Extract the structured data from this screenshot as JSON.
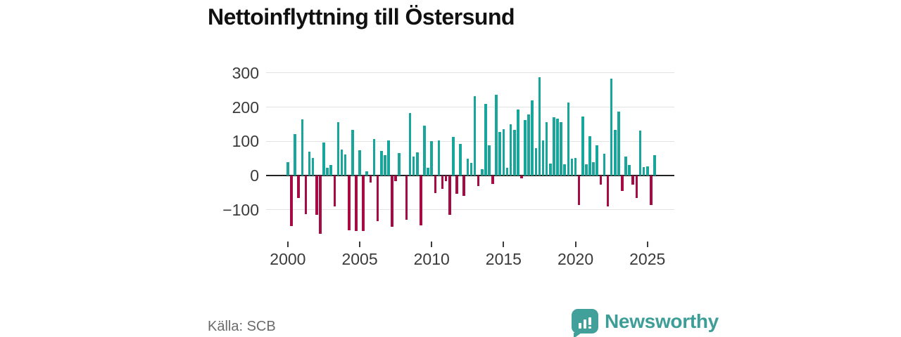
{
  "title": "Nettoinflyttning till Östersund",
  "source": {
    "label": "Källa: SCB"
  },
  "branding": {
    "name": "Newsworthy",
    "logo_icon": "bar-chart-speech-bubble-icon",
    "brand_color": "#3d9e97"
  },
  "colors": {
    "positive": "#18a69b",
    "negative": "#a60b44",
    "axis": "#222222",
    "grid": "#e2e2e2",
    "tick_text": "#3b3b3b",
    "source_text": "#6b6b6b"
  },
  "chart_data": {
    "type": "bar",
    "title": "Nettoinflyttning till Östersund",
    "xlabel": "",
    "ylabel": "",
    "grid": "horizontal-only",
    "legend": "none",
    "y_ticks": [
      300,
      200,
      100,
      0,
      -100
    ],
    "y_tick_labels": [
      "300",
      "200",
      "100",
      "0",
      "−100"
    ],
    "ylim": [
      -185,
      310
    ],
    "x_tick_years": [
      2000,
      2005,
      2010,
      2015,
      2020,
      2025
    ],
    "x_tick_labels": [
      "2000",
      "2005",
      "2010",
      "2015",
      "2020",
      "2025"
    ],
    "frequency": "quarterly",
    "start_quarter": "2000Q1",
    "end_quarter": "2025Q3",
    "values_by_year": [
      {
        "year": 2000,
        "quarters": [
          40,
          -148,
          121,
          -65
        ]
      },
      {
        "year": 2001,
        "quarters": [
          165,
          -112,
          70,
          52
        ]
      },
      {
        "year": 2002,
        "quarters": [
          -114,
          -170,
          97,
          22
        ]
      },
      {
        "year": 2003,
        "quarters": [
          30,
          -90,
          157,
          75
        ]
      },
      {
        "year": 2004,
        "quarters": [
          62,
          -160,
          133,
          -163
        ]
      },
      {
        "year": 2005,
        "quarters": [
          74,
          -162,
          12,
          -20
        ]
      },
      {
        "year": 2006,
        "quarters": [
          107,
          -134,
          72,
          59
        ]
      },
      {
        "year": 2007,
        "quarters": [
          103,
          -150,
          -17,
          65
        ]
      },
      {
        "year": 2008,
        "quarters": [
          0,
          -130,
          183,
          56
        ]
      },
      {
        "year": 2009,
        "quarters": [
          67,
          -145,
          146,
          22
        ]
      },
      {
        "year": 2010,
        "quarters": [
          100,
          -52,
          102,
          -40
        ]
      },
      {
        "year": 2011,
        "quarters": [
          -17,
          -115,
          112,
          -54
        ]
      },
      {
        "year": 2012,
        "quarters": [
          93,
          -60,
          50,
          36
        ]
      },
      {
        "year": 2013,
        "quarters": [
          232,
          -30,
          19,
          210
        ]
      },
      {
        "year": 2014,
        "quarters": [
          88,
          -24,
          237,
          128
        ]
      },
      {
        "year": 2015,
        "quarters": [
          135,
          22,
          150,
          133
        ]
      },
      {
        "year": 2016,
        "quarters": [
          193,
          -8,
          162,
          178
        ]
      },
      {
        "year": 2017,
        "quarters": [
          220,
          81,
          287,
          103
        ]
      },
      {
        "year": 2018,
        "quarters": [
          157,
          35,
          171,
          166
        ]
      },
      {
        "year": 2019,
        "quarters": [
          157,
          32,
          214,
          49
        ]
      },
      {
        "year": 2020,
        "quarters": [
          52,
          -86,
          173,
          32
        ]
      },
      {
        "year": 2021,
        "quarters": [
          114,
          40,
          88,
          -26
        ]
      },
      {
        "year": 2022,
        "quarters": [
          64,
          -91,
          284,
          133
        ]
      },
      {
        "year": 2023,
        "quarters": [
          187,
          -46,
          56,
          31
        ]
      },
      {
        "year": 2024,
        "quarters": [
          -27,
          -66,
          131,
          25
        ]
      },
      {
        "year": 2025,
        "quarters": [
          27,
          -86,
          59
        ]
      }
    ]
  }
}
